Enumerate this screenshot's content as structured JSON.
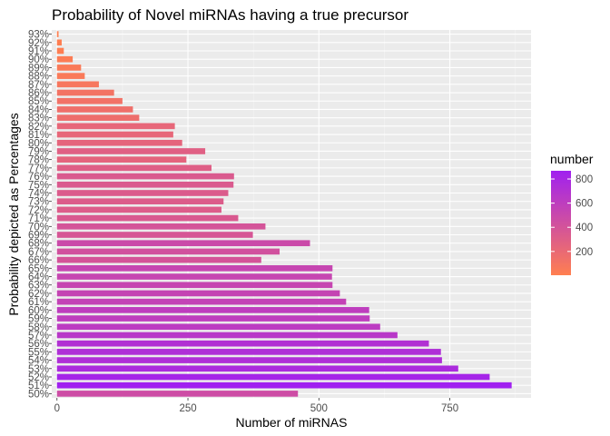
{
  "chart_data": {
    "type": "bar",
    "orientation": "horizontal",
    "title": "Probability of Novel miRNAs having a true precursor",
    "xlabel": "Number of miRNAS",
    "ylabel": "Probability depicted as Percentages",
    "xlim": [
      -10,
      905
    ],
    "xticks": [
      0,
      250,
      500,
      750
    ],
    "grid": true,
    "legend": {
      "title": "number",
      "position": "right",
      "ticks": [
        200,
        400,
        600,
        800
      ],
      "min": 3,
      "max": 868,
      "low_color": "#FF7F50",
      "high_color": "#A020F0"
    },
    "categories": [
      "50%",
      "51%",
      "52%",
      "53%",
      "54%",
      "55%",
      "56%",
      "57%",
      "58%",
      "59%",
      "60%",
      "61%",
      "62%",
      "63%",
      "64%",
      "65%",
      "66%",
      "67%",
      "68%",
      "69%",
      "70%",
      "71%",
      "72%",
      "73%",
      "74%",
      "75%",
      "76%",
      "77%",
      "78%",
      "79%",
      "80%",
      "81%",
      "82%",
      "83%",
      "84%",
      "85%",
      "86%",
      "87%",
      "88%",
      "89%",
      "90%",
      "91%",
      "92%",
      "93%"
    ],
    "values": [
      460,
      868,
      826,
      766,
      735,
      733,
      710,
      650,
      617,
      597,
      596,
      552,
      540,
      526,
      525,
      526,
      390,
      425,
      483,
      374,
      398,
      346,
      314,
      318,
      327,
      337,
      338,
      295,
      247,
      283,
      239,
      222,
      225,
      157,
      145,
      125,
      109,
      80,
      53,
      46,
      30,
      13,
      9,
      3
    ]
  }
}
